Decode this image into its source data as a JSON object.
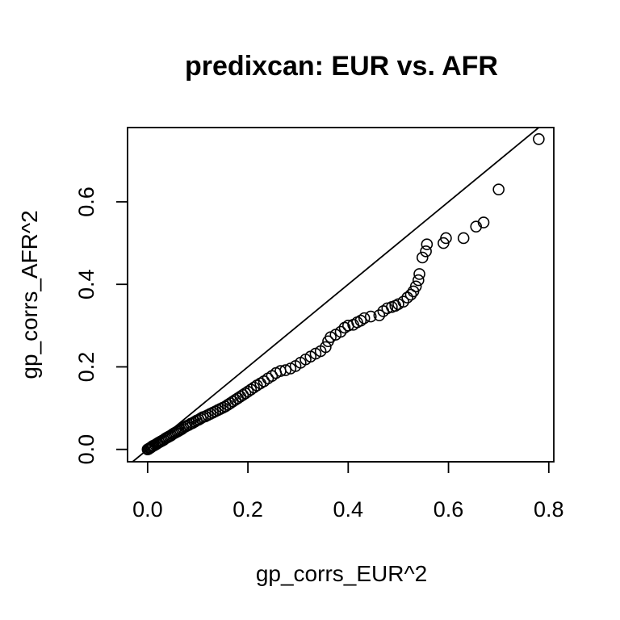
{
  "chart_data": {
    "type": "scatter",
    "title": "predixcan: EUR vs. AFR",
    "xlabel": "gp_corrs_EUR^2",
    "ylabel": "gp_corrs_AFR^2",
    "xlim": [
      -0.04,
      0.81
    ],
    "ylim": [
      -0.03,
      0.78
    ],
    "xticks": [
      0.0,
      0.2,
      0.4,
      0.6,
      0.8
    ],
    "xtick_labels": [
      "0.0",
      "0.2",
      "0.4",
      "0.6",
      "0.8"
    ],
    "yticks": [
      0.0,
      0.2,
      0.4,
      0.6
    ],
    "ytick_labels": [
      "0.0",
      "0.2",
      "0.4",
      "0.6"
    ],
    "reference_line": "y = x",
    "marker": "open-circle",
    "grid": false,
    "series": [
      {
        "points": [
          [
            0.0,
            0.0
          ],
          [
            0.002,
            0.001
          ],
          [
            0.004,
            0.003
          ],
          [
            0.006,
            0.004
          ],
          [
            0.008,
            0.006
          ],
          [
            0.01,
            0.008
          ],
          [
            0.012,
            0.009
          ],
          [
            0.015,
            0.011
          ],
          [
            0.018,
            0.013
          ],
          [
            0.02,
            0.015
          ],
          [
            0.023,
            0.017
          ],
          [
            0.026,
            0.019
          ],
          [
            0.029,
            0.021
          ],
          [
            0.032,
            0.023
          ],
          [
            0.035,
            0.026
          ],
          [
            0.038,
            0.028
          ],
          [
            0.041,
            0.03
          ],
          [
            0.044,
            0.032
          ],
          [
            0.047,
            0.034
          ],
          [
            0.05,
            0.037
          ],
          [
            0.053,
            0.039
          ],
          [
            0.056,
            0.041
          ],
          [
            0.059,
            0.043
          ],
          [
            0.062,
            0.045
          ],
          [
            0.065,
            0.047
          ],
          [
            0.068,
            0.049
          ],
          [
            0.071,
            0.052
          ],
          [
            0.075,
            0.055
          ],
          [
            0.078,
            0.057
          ],
          [
            0.082,
            0.059
          ],
          [
            0.086,
            0.062
          ],
          [
            0.09,
            0.064
          ],
          [
            0.094,
            0.067
          ],
          [
            0.098,
            0.07
          ],
          [
            0.102,
            0.072
          ],
          [
            0.106,
            0.075
          ],
          [
            0.11,
            0.078
          ],
          [
            0.115,
            0.08
          ],
          [
            0.12,
            0.083
          ],
          [
            0.125,
            0.086
          ],
          [
            0.13,
            0.089
          ],
          [
            0.135,
            0.092
          ],
          [
            0.14,
            0.095
          ],
          [
            0.145,
            0.098
          ],
          [
            0.15,
            0.101
          ],
          [
            0.155,
            0.104
          ],
          [
            0.16,
            0.108
          ],
          [
            0.165,
            0.112
          ],
          [
            0.17,
            0.116
          ],
          [
            0.175,
            0.12
          ],
          [
            0.18,
            0.124
          ],
          [
            0.185,
            0.128
          ],
          [
            0.19,
            0.132
          ],
          [
            0.195,
            0.136
          ],
          [
            0.2,
            0.14
          ],
          [
            0.206,
            0.145
          ],
          [
            0.212,
            0.15
          ],
          [
            0.218,
            0.155
          ],
          [
            0.225,
            0.16
          ],
          [
            0.232,
            0.165
          ],
          [
            0.24,
            0.172
          ],
          [
            0.248,
            0.178
          ],
          [
            0.256,
            0.185
          ],
          [
            0.265,
            0.19
          ],
          [
            0.275,
            0.192
          ],
          [
            0.285,
            0.196
          ],
          [
            0.295,
            0.202
          ],
          [
            0.305,
            0.21
          ],
          [
            0.315,
            0.218
          ],
          [
            0.325,
            0.225
          ],
          [
            0.335,
            0.232
          ],
          [
            0.345,
            0.238
          ],
          [
            0.355,
            0.248
          ],
          [
            0.36,
            0.262
          ],
          [
            0.365,
            0.272
          ],
          [
            0.375,
            0.278
          ],
          [
            0.385,
            0.285
          ],
          [
            0.393,
            0.295
          ],
          [
            0.4,
            0.3
          ],
          [
            0.41,
            0.302
          ],
          [
            0.418,
            0.308
          ],
          [
            0.425,
            0.312
          ],
          [
            0.432,
            0.318
          ],
          [
            0.445,
            0.322
          ],
          [
            0.462,
            0.325
          ],
          [
            0.47,
            0.335
          ],
          [
            0.478,
            0.342
          ],
          [
            0.487,
            0.345
          ],
          [
            0.494,
            0.348
          ],
          [
            0.5,
            0.352
          ],
          [
            0.51,
            0.358
          ],
          [
            0.518,
            0.368
          ],
          [
            0.525,
            0.375
          ],
          [
            0.53,
            0.383
          ],
          [
            0.535,
            0.395
          ],
          [
            0.54,
            0.41
          ],
          [
            0.542,
            0.425
          ],
          [
            0.548,
            0.465
          ],
          [
            0.555,
            0.48
          ],
          [
            0.557,
            0.497
          ],
          [
            0.59,
            0.5
          ],
          [
            0.595,
            0.512
          ],
          [
            0.63,
            0.512
          ],
          [
            0.655,
            0.54
          ],
          [
            0.67,
            0.55
          ],
          [
            0.7,
            0.63
          ],
          [
            0.78,
            0.752
          ]
        ]
      }
    ]
  }
}
